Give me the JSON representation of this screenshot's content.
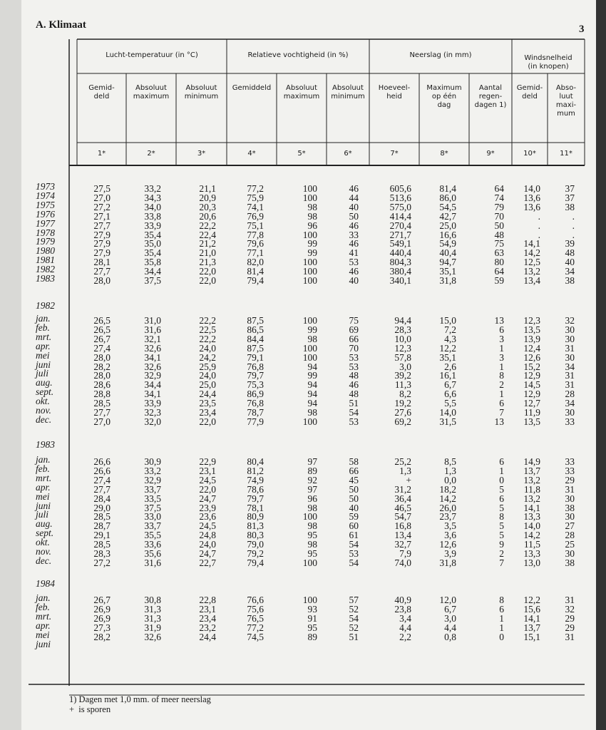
{
  "header": {
    "section": "A. Klimaat",
    "page": "3"
  },
  "table": {
    "groups": [
      {
        "label": "Lucht-temperatuur (in °C)",
        "span": 3
      },
      {
        "label": "Relatieve vochtigheid (in %)",
        "span": 3
      },
      {
        "label": "Neerslag (in mm)",
        "span": 3
      },
      {
        "label": "Windsnelheid\n(in knopen)",
        "span": 2
      }
    ],
    "columns": [
      {
        "label": "Gemid-\ndeld",
        "number": "1*"
      },
      {
        "label": "Absoluut\nmaximum",
        "number": "2*"
      },
      {
        "label": "Absoluut\nminimum",
        "number": "3*"
      },
      {
        "label": "Gemiddeld",
        "number": "4*"
      },
      {
        "label": "Absoluut\nmaximum",
        "number": "5*"
      },
      {
        "label": "Absoluut\nminimum",
        "number": "6*"
      },
      {
        "label": "Hoeveel-\nheid",
        "number": "7*"
      },
      {
        "label": "Maximum\nop één\ndag",
        "number": "8*"
      },
      {
        "label": "Aantal\nregen-\ndagen 1)",
        "number": "9*"
      },
      {
        "label": "Gemid-\ndeld",
        "number": "10*"
      },
      {
        "label": "Abso-\nluut\nmaxi-\nmum",
        "number": "11*"
      }
    ],
    "sections": [
      {
        "rows": [
          {
            "label": "1973",
            "cells": [
              "27,5",
              "33,2",
              "21,1",
              "77,2",
              "100",
              "46",
              "605,6",
              "81,4",
              "64",
              "14,0",
              "37"
            ]
          },
          {
            "label": "1974",
            "cells": [
              "27,0",
              "34,3",
              "20,9",
              "75,9",
              "100",
              "44",
              "513,6",
              "86,0",
              "74",
              "13,6",
              "37"
            ]
          },
          {
            "label": "1975",
            "cells": [
              "27,2",
              "34,0",
              "20,3",
              "74,1",
              "98",
              "40",
              "575,0",
              "54,5",
              "79",
              "13,6",
              "38"
            ]
          },
          {
            "label": "1976",
            "cells": [
              "27,1",
              "33,8",
              "20,6",
              "76,9",
              "98",
              "50",
              "414,4",
              "42,7",
              "70",
              ".",
              "."
            ]
          },
          {
            "label": "1977",
            "cells": [
              "27,7",
              "33,9",
              "22,2",
              "75,1",
              "96",
              "46",
              "270,4",
              "25,0",
              "50",
              ".",
              "."
            ]
          },
          {
            "label": "1978",
            "cells": [
              "27,9",
              "35,4",
              "22,4",
              "77,8",
              "100",
              "33",
              "271,7",
              "16,6",
              "48",
              ".",
              "."
            ]
          },
          {
            "label": "1979",
            "cells": [
              "27,9",
              "35,0",
              "21,2",
              "79,6",
              "99",
              "46",
              "549,1",
              "54,9",
              "75",
              "14,1",
              "39"
            ]
          },
          {
            "label": "1980",
            "cells": [
              "27,9",
              "35,4",
              "21,0",
              "77,1",
              "99",
              "41",
              "440,4",
              "40,4",
              "63",
              "14,2",
              "48"
            ]
          },
          {
            "label": "1981",
            "cells": [
              "28,1",
              "35,8",
              "21,3",
              "82,0",
              "100",
              "53",
              "804,3",
              "94,7",
              "80",
              "12,5",
              "40"
            ]
          },
          {
            "label": "1982",
            "cells": [
              "27,7",
              "34,4",
              "22,0",
              "81,4",
              "100",
              "46",
              "380,4",
              "35,1",
              "64",
              "13,2",
              "34"
            ]
          },
          {
            "label": "1983",
            "cells": [
              "28,0",
              "37,5",
              "22,0",
              "79,4",
              "100",
              "40",
              "340,1",
              "31,8",
              "59",
              "13,4",
              "38"
            ]
          }
        ]
      },
      {
        "title": "1982",
        "rows": [
          {
            "label": "jan.",
            "cells": [
              "26,5",
              "31,0",
              "22,2",
              "87,5",
              "100",
              "75",
              "94,4",
              "15,0",
              "13",
              "12,3",
              "32"
            ]
          },
          {
            "label": "feb.",
            "cells": [
              "26,5",
              "31,6",
              "22,5",
              "86,5",
              "99",
              "69",
              "28,3",
              "7,2",
              "6",
              "13,5",
              "30"
            ]
          },
          {
            "label": "mrt.",
            "cells": [
              "26,7",
              "32,1",
              "22,2",
              "84,4",
              "98",
              "66",
              "10,0",
              "4,3",
              "3",
              "13,9",
              "30"
            ]
          },
          {
            "label": "apr.",
            "cells": [
              "27,4",
              "32,6",
              "24,0",
              "87,5",
              "100",
              "70",
              "12,3",
              "12,2",
              "1",
              "12,4",
              "31"
            ]
          },
          {
            "label": "mei",
            "cells": [
              "28,0",
              "34,1",
              "24,2",
              "79,1",
              "100",
              "53",
              "57,8",
              "35,1",
              "3",
              "12,6",
              "30"
            ]
          },
          {
            "label": "juni",
            "cells": [
              "28,2",
              "32,6",
              "25,9",
              "76,8",
              "94",
              "53",
              "3,0",
              "2,6",
              "1",
              "15,2",
              "34"
            ]
          },
          {
            "label": "juli",
            "cells": [
              "28,0",
              "32,9",
              "24,0",
              "79,7",
              "99",
              "48",
              "39,2",
              "16,1",
              "8",
              "12,9",
              "31"
            ]
          },
          {
            "label": "aug.",
            "cells": [
              "28,6",
              "34,4",
              "25,0",
              "75,3",
              "94",
              "46",
              "11,3",
              "6,7",
              "2",
              "14,5",
              "31"
            ]
          },
          {
            "label": "sept.",
            "cells": [
              "28,8",
              "34,1",
              "24,4",
              "86,9",
              "94",
              "48",
              "8,2",
              "6,6",
              "1",
              "12,9",
              "28"
            ]
          },
          {
            "label": "okt.",
            "cells": [
              "28,5",
              "33,9",
              "23,5",
              "76,8",
              "94",
              "51",
              "19,2",
              "5,5",
              "6",
              "12,7",
              "34"
            ]
          },
          {
            "label": "nov.",
            "cells": [
              "27,7",
              "32,3",
              "23,4",
              "78,7",
              "98",
              "54",
              "27,6",
              "14,0",
              "7",
              "11,9",
              "30"
            ]
          },
          {
            "label": "dec.",
            "cells": [
              "27,0",
              "32,0",
              "22,0",
              "77,9",
              "100",
              "53",
              "69,2",
              "31,5",
              "13",
              "13,5",
              "33"
            ]
          }
        ]
      },
      {
        "title": "1983",
        "rows": [
          {
            "label": "jan.",
            "cells": [
              "26,6",
              "30,9",
              "22,9",
              "80,4",
              "97",
              "58",
              "25,2",
              "8,5",
              "6",
              "14,9",
              "33"
            ]
          },
          {
            "label": "feb.",
            "cells": [
              "26,6",
              "33,2",
              "23,1",
              "81,2",
              "89",
              "66",
              "1,3",
              "1,3",
              "1",
              "13,7",
              "33"
            ]
          },
          {
            "label": "mrt.",
            "cells": [
              "27,4",
              "32,9",
              "24,5",
              "74,9",
              "92",
              "45",
              "+",
              "0,0",
              "0",
              "13,2",
              "29"
            ]
          },
          {
            "label": "apr.",
            "cells": [
              "27,7",
              "33,7",
              "22,0",
              "78,6",
              "97",
              "50",
              "31,2",
              "18,2",
              "5",
              "11,8",
              "31"
            ]
          },
          {
            "label": "mei",
            "cells": [
              "28,4",
              "33,5",
              "24,7",
              "79,7",
              "96",
              "50",
              "36,4",
              "14,2",
              "6",
              "13,2",
              "30"
            ]
          },
          {
            "label": "juni",
            "cells": [
              "29,0",
              "37,5",
              "23,9",
              "78,1",
              "98",
              "40",
              "46,5",
              "26,0",
              "5",
              "14,1",
              "38"
            ]
          },
          {
            "label": "juli",
            "cells": [
              "28,5",
              "33,0",
              "23,6",
              "80,9",
              "100",
              "59",
              "54,7",
              "23,7",
              "8",
              "13,3",
              "30"
            ]
          },
          {
            "label": "aug.",
            "cells": [
              "28,7",
              "33,7",
              "24,5",
              "81,3",
              "98",
              "60",
              "16,8",
              "3,5",
              "5",
              "14,0",
              "27"
            ]
          },
          {
            "label": "sept.",
            "cells": [
              "29,1",
              "35,5",
              "24,8",
              "80,3",
              "95",
              "61",
              "13,4",
              "3,6",
              "5",
              "14,2",
              "28"
            ]
          },
          {
            "label": "okt.",
            "cells": [
              "28,5",
              "33,6",
              "24,0",
              "79,0",
              "98",
              "54",
              "32,7",
              "12,6",
              "9",
              "11,5",
              "25"
            ]
          },
          {
            "label": "nov.",
            "cells": [
              "28,3",
              "35,6",
              "24,7",
              "79,2",
              "95",
              "53",
              "7,9",
              "3,9",
              "2",
              "13,3",
              "30"
            ]
          },
          {
            "label": "dec.",
            "cells": [
              "27,2",
              "31,6",
              "22,7",
              "79,4",
              "100",
              "54",
              "74,0",
              "31,8",
              "7",
              "13,0",
              "38"
            ]
          }
        ]
      },
      {
        "title": "1984",
        "rows": [
          {
            "label": "jan.",
            "cells": [
              "26,7",
              "30,8",
              "22,8",
              "76,6",
              "100",
              "57",
              "40,9",
              "12,0",
              "8",
              "12,2",
              "31"
            ]
          },
          {
            "label": "feb.",
            "cells": [
              "26,9",
              "31,3",
              "23,1",
              "75,6",
              "93",
              "52",
              "23,8",
              "6,7",
              "6",
              "15,6",
              "32"
            ]
          },
          {
            "label": "mrt.",
            "cells": [
              "26,9",
              "31,3",
              "23,4",
              "76,5",
              "91",
              "54",
              "3,4",
              "3,0",
              "1",
              "14,1",
              "29"
            ]
          },
          {
            "label": "apr.",
            "cells": [
              "27,3",
              "31,9",
              "23,2",
              "77,2",
              "95",
              "52",
              "4,4",
              "4,4",
              "1",
              "13,7",
              "29"
            ]
          },
          {
            "label": "mei",
            "cells": [
              "28,2",
              "32,6",
              "24,4",
              "74,5",
              "89",
              "51",
              "2,2",
              "0,8",
              "0",
              "15,1",
              "31"
            ]
          },
          {
            "label": "juni"
          }
        ]
      }
    ]
  },
  "footnotes": [
    "1) Dagen met 1,0 mm. of meer neerslag",
    "+  is sporen"
  ]
}
